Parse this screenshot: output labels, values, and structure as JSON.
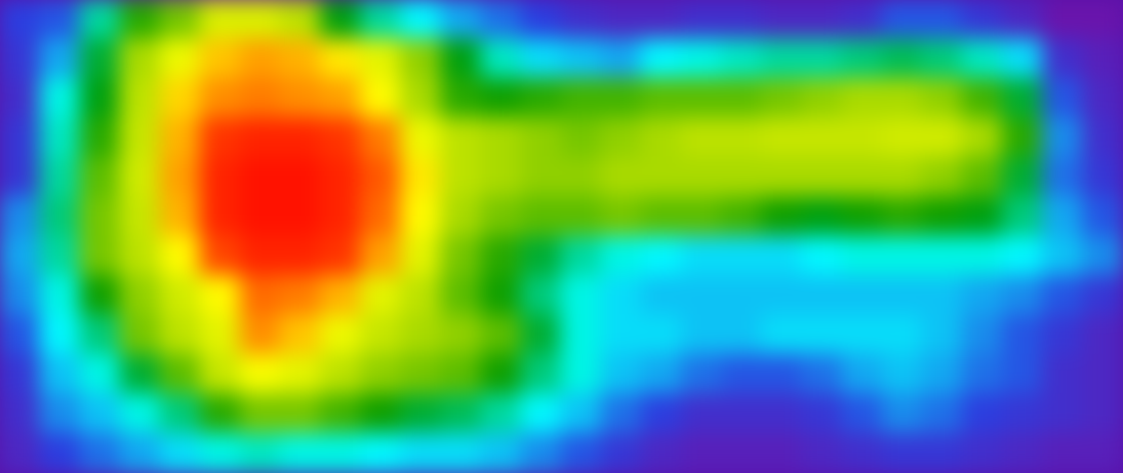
{
  "chart_data": {
    "type": "heatmap",
    "title": "",
    "xlabel": "",
    "ylabel": "",
    "grid": false,
    "legend": "none",
    "colormap": {
      "name": "rainbow",
      "low_to_high": [
        "#7a0a9e",
        "#2a3fe0",
        "#00ffff",
        "#009900",
        "#b8e000",
        "#ffff00",
        "#ff7f00",
        "#ff0000"
      ]
    },
    "value_range": [
      0,
      1
    ],
    "rows": 12,
    "cols": 28,
    "values": [
      [
        0.14,
        0.16,
        0.34,
        0.46,
        0.52,
        0.64,
        0.64,
        0.58,
        0.42,
        0.34,
        0.28,
        0.22,
        0.18,
        0.14,
        0.1,
        0.08,
        0.08,
        0.1,
        0.1,
        0.08,
        0.08,
        0.1,
        0.16,
        0.16,
        0.12,
        0.08,
        0.03,
        0.03
      ],
      [
        0.12,
        0.22,
        0.4,
        0.56,
        0.68,
        0.78,
        0.82,
        0.8,
        0.74,
        0.66,
        0.54,
        0.42,
        0.32,
        0.26,
        0.24,
        0.22,
        0.28,
        0.3,
        0.32,
        0.34,
        0.34,
        0.36,
        0.38,
        0.36,
        0.32,
        0.26,
        0.1,
        0.06
      ],
      [
        0.1,
        0.3,
        0.42,
        0.58,
        0.76,
        0.84,
        0.86,
        0.84,
        0.82,
        0.72,
        0.56,
        0.46,
        0.44,
        0.46,
        0.48,
        0.48,
        0.5,
        0.5,
        0.5,
        0.52,
        0.54,
        0.56,
        0.56,
        0.54,
        0.48,
        0.4,
        0.16,
        0.08
      ],
      [
        0.12,
        0.32,
        0.46,
        0.6,
        0.8,
        0.94,
        0.96,
        0.96,
        0.94,
        0.86,
        0.68,
        0.58,
        0.56,
        0.54,
        0.52,
        0.54,
        0.56,
        0.58,
        0.58,
        0.6,
        0.6,
        0.6,
        0.62,
        0.62,
        0.56,
        0.46,
        0.2,
        0.1
      ],
      [
        0.12,
        0.34,
        0.5,
        0.62,
        0.82,
        0.96,
        0.98,
        0.98,
        0.96,
        0.9,
        0.74,
        0.58,
        0.56,
        0.54,
        0.54,
        0.56,
        0.56,
        0.56,
        0.56,
        0.56,
        0.56,
        0.56,
        0.56,
        0.54,
        0.5,
        0.4,
        0.18,
        0.12
      ],
      [
        0.2,
        0.36,
        0.52,
        0.6,
        0.8,
        0.96,
        0.98,
        0.98,
        0.96,
        0.88,
        0.72,
        0.56,
        0.52,
        0.5,
        0.5,
        0.52,
        0.5,
        0.5,
        0.48,
        0.44,
        0.42,
        0.44,
        0.46,
        0.44,
        0.42,
        0.36,
        0.22,
        0.16
      ],
      [
        0.22,
        0.34,
        0.52,
        0.58,
        0.72,
        0.92,
        0.96,
        0.96,
        0.94,
        0.82,
        0.66,
        0.52,
        0.46,
        0.4,
        0.34,
        0.3,
        0.28,
        0.26,
        0.26,
        0.26,
        0.28,
        0.3,
        0.3,
        0.3,
        0.3,
        0.28,
        0.24,
        0.2
      ],
      [
        0.2,
        0.3,
        0.44,
        0.54,
        0.62,
        0.72,
        0.88,
        0.86,
        0.8,
        0.66,
        0.58,
        0.5,
        0.44,
        0.36,
        0.3,
        0.26,
        0.24,
        0.24,
        0.24,
        0.24,
        0.24,
        0.24,
        0.24,
        0.24,
        0.22,
        0.2,
        0.16,
        0.12
      ],
      [
        0.16,
        0.28,
        0.36,
        0.52,
        0.58,
        0.66,
        0.84,
        0.78,
        0.68,
        0.6,
        0.56,
        0.54,
        0.5,
        0.4,
        0.3,
        0.26,
        0.26,
        0.24,
        0.24,
        0.26,
        0.26,
        0.26,
        0.26,
        0.24,
        0.2,
        0.16,
        0.12,
        0.08
      ],
      [
        0.12,
        0.24,
        0.3,
        0.4,
        0.5,
        0.6,
        0.7,
        0.66,
        0.58,
        0.54,
        0.52,
        0.5,
        0.44,
        0.36,
        0.3,
        0.24,
        0.22,
        0.18,
        0.16,
        0.16,
        0.18,
        0.22,
        0.24,
        0.22,
        0.18,
        0.16,
        0.1,
        0.08
      ],
      [
        0.1,
        0.2,
        0.24,
        0.3,
        0.36,
        0.46,
        0.52,
        0.52,
        0.48,
        0.44,
        0.4,
        0.38,
        0.34,
        0.28,
        0.24,
        0.18,
        0.14,
        0.1,
        0.1,
        0.1,
        0.12,
        0.16,
        0.2,
        0.18,
        0.14,
        0.12,
        0.1,
        0.08
      ],
      [
        0.08,
        0.14,
        0.18,
        0.22,
        0.26,
        0.3,
        0.32,
        0.3,
        0.3,
        0.28,
        0.26,
        0.26,
        0.24,
        0.2,
        0.16,
        0.12,
        0.08,
        0.06,
        0.06,
        0.06,
        0.08,
        0.1,
        0.12,
        0.12,
        0.1,
        0.08,
        0.06,
        0.06
      ]
    ]
  }
}
